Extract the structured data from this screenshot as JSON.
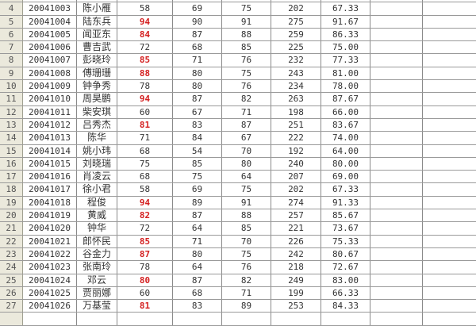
{
  "accent_red": "#d42020",
  "rows": [
    {
      "n": "4",
      "id": "20041003",
      "name": "陈小雁",
      "s1": "58",
      "s2": "69",
      "s3": "75",
      "total": "202",
      "avg": "67.33",
      "hi": false
    },
    {
      "n": "5",
      "id": "20041004",
      "name": "陆东兵",
      "s1": "94",
      "s2": "90",
      "s3": "91",
      "total": "275",
      "avg": "91.67",
      "hi": true
    },
    {
      "n": "6",
      "id": "20041005",
      "name": "闻亚东",
      "s1": "84",
      "s2": "87",
      "s3": "88",
      "total": "259",
      "avg": "86.33",
      "hi": true
    },
    {
      "n": "7",
      "id": "20041006",
      "name": "曹吉武",
      "s1": "72",
      "s2": "68",
      "s3": "85",
      "total": "225",
      "avg": "75.00",
      "hi": false
    },
    {
      "n": "8",
      "id": "20041007",
      "name": "彭晓玲",
      "s1": "85",
      "s2": "71",
      "s3": "76",
      "total": "232",
      "avg": "77.33",
      "hi": true
    },
    {
      "n": "9",
      "id": "20041008",
      "name": "傅珊珊",
      "s1": "88",
      "s2": "80",
      "s3": "75",
      "total": "243",
      "avg": "81.00",
      "hi": true
    },
    {
      "n": "10",
      "id": "20041009",
      "name": "钟争秀",
      "s1": "78",
      "s2": "80",
      "s3": "76",
      "total": "234",
      "avg": "78.00",
      "hi": false
    },
    {
      "n": "11",
      "id": "20041010",
      "name": "周昊鹏",
      "s1": "94",
      "s2": "87",
      "s3": "82",
      "total": "263",
      "avg": "87.67",
      "hi": true
    },
    {
      "n": "12",
      "id": "20041011",
      "name": "柴安琪",
      "s1": "60",
      "s2": "67",
      "s3": "71",
      "total": "198",
      "avg": "66.00",
      "hi": false
    },
    {
      "n": "13",
      "id": "20041012",
      "name": "吕秀杰",
      "s1": "81",
      "s2": "83",
      "s3": "87",
      "total": "251",
      "avg": "83.67",
      "hi": true
    },
    {
      "n": "14",
      "id": "20041013",
      "name": "陈华",
      "s1": "71",
      "s2": "84",
      "s3": "67",
      "total": "222",
      "avg": "74.00",
      "hi": false
    },
    {
      "n": "15",
      "id": "20041014",
      "name": "姚小玮",
      "s1": "68",
      "s2": "54",
      "s3": "70",
      "total": "192",
      "avg": "64.00",
      "hi": false
    },
    {
      "n": "16",
      "id": "20041015",
      "name": "刘晓瑞",
      "s1": "75",
      "s2": "85",
      "s3": "80",
      "total": "240",
      "avg": "80.00",
      "hi": false
    },
    {
      "n": "17",
      "id": "20041016",
      "name": "肖凌云",
      "s1": "68",
      "s2": "75",
      "s3": "64",
      "total": "207",
      "avg": "69.00",
      "hi": false
    },
    {
      "n": "18",
      "id": "20041017",
      "name": "徐小君",
      "s1": "58",
      "s2": "69",
      "s3": "75",
      "total": "202",
      "avg": "67.33",
      "hi": false
    },
    {
      "n": "19",
      "id": "20041018",
      "name": "程俊",
      "s1": "94",
      "s2": "89",
      "s3": "91",
      "total": "274",
      "avg": "91.33",
      "hi": true
    },
    {
      "n": "20",
      "id": "20041019",
      "name": "黄威",
      "s1": "82",
      "s2": "87",
      "s3": "88",
      "total": "257",
      "avg": "85.67",
      "hi": true
    },
    {
      "n": "21",
      "id": "20041020",
      "name": "钟华",
      "s1": "72",
      "s2": "64",
      "s3": "85",
      "total": "221",
      "avg": "73.67",
      "hi": false
    },
    {
      "n": "22",
      "id": "20041021",
      "name": "郎怀民",
      "s1": "85",
      "s2": "71",
      "s3": "70",
      "total": "226",
      "avg": "75.33",
      "hi": true
    },
    {
      "n": "23",
      "id": "20041022",
      "name": "谷金力",
      "s1": "87",
      "s2": "80",
      "s3": "75",
      "total": "242",
      "avg": "80.67",
      "hi": true
    },
    {
      "n": "24",
      "id": "20041023",
      "name": "张南玲",
      "s1": "78",
      "s2": "64",
      "s3": "76",
      "total": "218",
      "avg": "72.67",
      "hi": false
    },
    {
      "n": "25",
      "id": "20041024",
      "name": "邓云",
      "s1": "80",
      "s2": "87",
      "s3": "82",
      "total": "249",
      "avg": "83.00",
      "hi": true
    },
    {
      "n": "26",
      "id": "20041025",
      "name": "贾丽娜",
      "s1": "60",
      "s2": "68",
      "s3": "71",
      "total": "199",
      "avg": "66.33",
      "hi": false
    },
    {
      "n": "27",
      "id": "20041026",
      "name": "万基莹",
      "s1": "81",
      "s2": "83",
      "s3": "89",
      "total": "253",
      "avg": "84.33",
      "hi": true
    }
  ]
}
